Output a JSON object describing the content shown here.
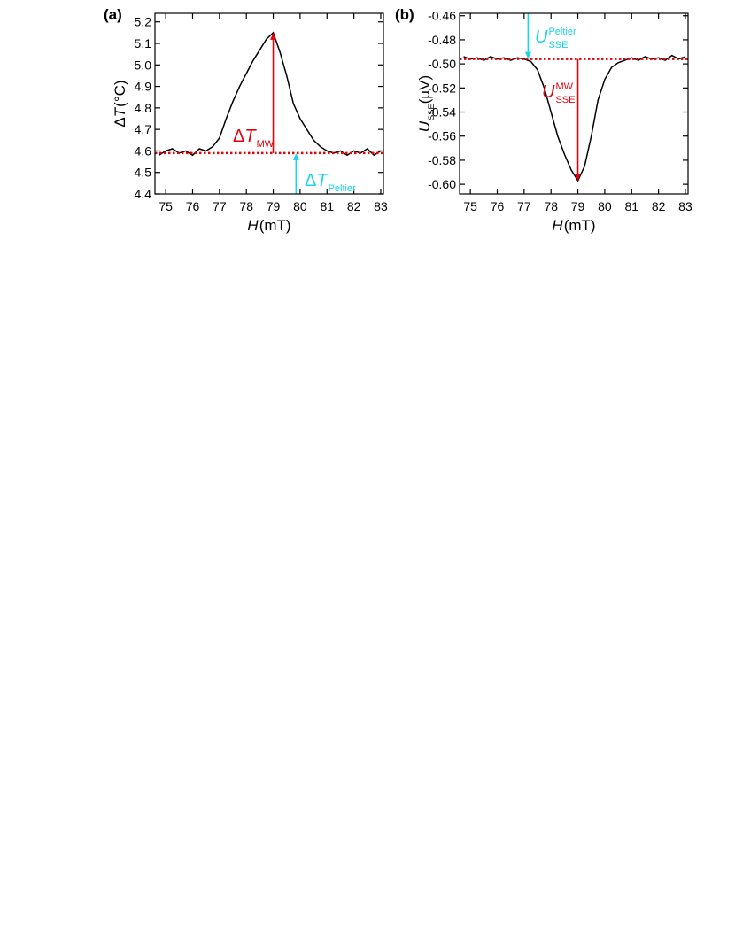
{
  "chart_data": [
    {
      "type": "line",
      "panel_label": "(a)",
      "x_label": {
        "main": "H",
        "suffix": " (mT)"
      },
      "y_label": {
        "prefix": "Δ",
        "main": "T",
        "suffix": " (°C)"
      },
      "xlim": [
        74.6,
        83.1
      ],
      "xticks": [
        75,
        76,
        77,
        78,
        79,
        80,
        81,
        82,
        83
      ],
      "ylim": [
        4.4,
        5.24
      ],
      "yticks": [
        4.4,
        4.5,
        4.6,
        4.7,
        4.8,
        4.9,
        {
          "value": 5,
          "label": "5.0"
        },
        5.1,
        5.2
      ],
      "color": "#000000",
      "x": [
        74.75,
        75,
        75.25,
        75.5,
        75.75,
        76,
        76.25,
        76.5,
        76.75,
        77,
        77.25,
        77.5,
        77.75,
        78,
        78.25,
        78.5,
        78.75,
        79,
        79.25,
        79.5,
        79.75,
        80,
        80.25,
        80.5,
        80.75,
        81,
        81.25,
        81.5,
        81.75,
        82,
        82.25,
        82.5,
        82.75,
        83
      ],
      "values": [
        4.58,
        4.6,
        4.61,
        4.59,
        4.6,
        4.58,
        4.61,
        4.6,
        4.62,
        4.66,
        4.75,
        4.83,
        4.9,
        4.96,
        5.02,
        5.07,
        5.12,
        5.15,
        5.06,
        4.95,
        4.82,
        4.75,
        4.7,
        4.65,
        4.62,
        4.6,
        4.59,
        4.6,
        4.58,
        4.6,
        4.59,
        4.61,
        4.58,
        4.6
      ],
      "reference_line": {
        "value": 4.59,
        "color": "#e8000b"
      },
      "arrows": [
        {
          "x": 79,
          "from": 4.59,
          "to": 5.15,
          "color": "#e8000b",
          "label": {
            "prefix": "Δ",
            "main": "T",
            "sub": "MW"
          }
        },
        {
          "x": 79.85,
          "from": 4.4,
          "to": 4.59,
          "color": "#1ad5e8",
          "label": {
            "prefix": "Δ",
            "main": "T",
            "sub": "Peltier"
          }
        }
      ]
    },
    {
      "type": "line",
      "panel_label": "(b)",
      "x_label": {
        "main": "H",
        "suffix": " (mT)"
      },
      "y_label": {
        "main": "U",
        "sub": "SSE",
        "suffix": " (µV)"
      },
      "xlim": [
        74.6,
        83.1
      ],
      "xticks": [
        75,
        76,
        77,
        78,
        79,
        80,
        81,
        82,
        83
      ],
      "ylim": [
        -0.608,
        -0.458
      ],
      "yticks": [
        -0.46,
        -0.48,
        {
          "value": -0.5,
          "label": "-0.50"
        },
        -0.52,
        -0.54,
        -0.56,
        -0.58,
        {
          "value": -0.6,
          "label": "-0.60"
        }
      ],
      "color": "#000000",
      "x": [
        74.75,
        75,
        75.25,
        75.5,
        75.75,
        76,
        76.25,
        76.5,
        76.75,
        77,
        77.25,
        77.5,
        77.75,
        78,
        78.25,
        78.5,
        78.75,
        79,
        79.25,
        79.5,
        79.75,
        80,
        80.25,
        80.5,
        80.75,
        81,
        81.25,
        81.5,
        81.75,
        82,
        82.25,
        82.5,
        82.75,
        83
      ],
      "values": [
        -0.494,
        -0.496,
        -0.495,
        -0.497,
        -0.494,
        -0.496,
        -0.495,
        -0.497,
        -0.495,
        -0.496,
        -0.498,
        -0.505,
        -0.52,
        -0.54,
        -0.56,
        -0.575,
        -0.588,
        -0.597,
        -0.585,
        -0.56,
        -0.53,
        -0.513,
        -0.503,
        -0.499,
        -0.497,
        -0.495,
        -0.497,
        -0.494,
        -0.496,
        -0.495,
        -0.497,
        -0.493,
        -0.496,
        -0.494
      ],
      "reference_line": {
        "value": -0.496,
        "color": "#e8000b"
      },
      "arrows": [
        {
          "x": 77.15,
          "from": -0.458,
          "to": -0.496,
          "color": "#1ad5e8",
          "label": {
            "main": "U",
            "sup": "Peltier",
            "sub": "SSE"
          }
        },
        {
          "x": 79,
          "from": -0.496,
          "to": -0.597,
          "color": "#e8000b",
          "label": {
            "main": "U",
            "sup": "MW",
            "sub": "SSE"
          }
        }
      ]
    }
  ]
}
